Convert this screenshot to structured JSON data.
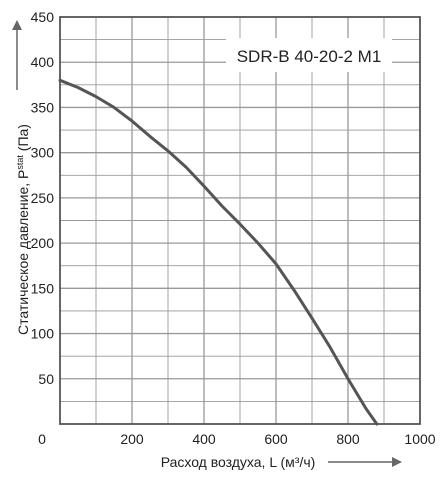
{
  "chart_data": {
    "type": "line",
    "title": "SDR-B 40-20-2 M1",
    "xlabel": "Расход воздуха, L (м³/ч)",
    "ylabel_main": "Статическое давление, P",
    "ylabel_sub": "stat",
    "ylabel_unit": " (Па)",
    "xlim": [
      0,
      1000
    ],
    "ylim": [
      0,
      450
    ],
    "xticks": [
      0,
      200,
      400,
      600,
      800,
      1000
    ],
    "yticks": [
      50,
      100,
      150,
      200,
      250,
      300,
      350,
      400,
      450
    ],
    "x_minor_step": 100,
    "y_minor_step": 25,
    "grid": true,
    "colors": {
      "line": "#555555",
      "grid": "#999999",
      "axis": "#555555"
    },
    "series": [
      {
        "x": [
          0,
          50,
          100,
          150,
          200,
          250,
          300,
          350,
          400,
          450,
          500,
          550,
          600,
          650,
          700,
          750,
          800,
          850,
          880
        ],
        "y": [
          380,
          372,
          362,
          350,
          335,
          318,
          302,
          284,
          263,
          241,
          221,
          200,
          177,
          148,
          117,
          85,
          50,
          17,
          0
        ]
      }
    ]
  }
}
